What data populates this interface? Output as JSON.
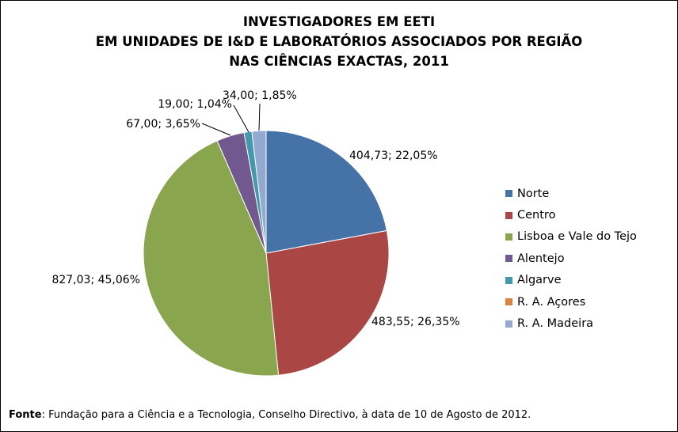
{
  "chart_data": {
    "type": "pie",
    "title_lines": [
      "INVESTIGADORES EM EETI",
      "EM UNIDADES DE I&D E LABORATÓRIOS ASSOCIADOS POR REGIÃO",
      "NAS CIÊNCIAS EXACTAS, 2011"
    ],
    "categories": [
      "Norte",
      "Centro",
      "Lisboa e Vale do Tejo",
      "Alentejo",
      "Algarve",
      "R. A. Açores",
      "R. A. Madeira"
    ],
    "values": [
      404.73,
      483.55,
      827.03,
      67.0,
      19.0,
      0,
      34.0
    ],
    "percents": [
      22.05,
      26.35,
      45.06,
      3.65,
      1.04,
      0,
      1.85
    ],
    "data_labels": [
      "404,73; 22,05%",
      "483,55; 26,35%",
      "827,03; 45,06%",
      "67,00; 3,65%",
      "19,00; 1,04%",
      "",
      "34,00; 1,85%"
    ],
    "colors": [
      "#4572A7",
      "#AA4643",
      "#89A54E",
      "#71588F",
      "#4198AF",
      "#DB843D",
      "#93A9CF"
    ],
    "legend_position": "right"
  },
  "source": {
    "label": "Fonte",
    "text": ": Fundação para a Ciência e a Tecnologia, Conselho Directivo, à data de 10 de Agosto de 2012."
  }
}
